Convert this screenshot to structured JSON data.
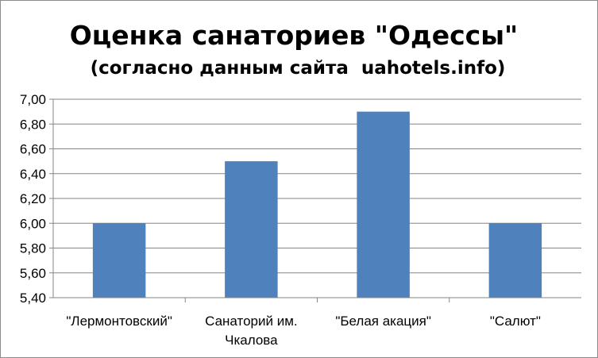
{
  "chart_data": {
    "type": "bar",
    "title": "Оценка санаториев \"Одессы\"",
    "subtitle": "(согласно данным сайта  uahotels.info)",
    "categories": [
      [
        "\"Лермонтовский\""
      ],
      [
        "Санаторий им.",
        "Чкалова"
      ],
      [
        "\"Белая акация\""
      ],
      [
        "\"Салют\""
      ]
    ],
    "values": [
      6.0,
      6.5,
      6.9,
      6.0
    ],
    "ylim": [
      5.4,
      7.0
    ],
    "yticks": [
      "5,40",
      "5,60",
      "5,80",
      "6,00",
      "6,20",
      "6,40",
      "6,60",
      "6,80",
      "7,00"
    ],
    "grid": true,
    "bar_color": "#4f81bd",
    "xlabel": "",
    "ylabel": ""
  }
}
